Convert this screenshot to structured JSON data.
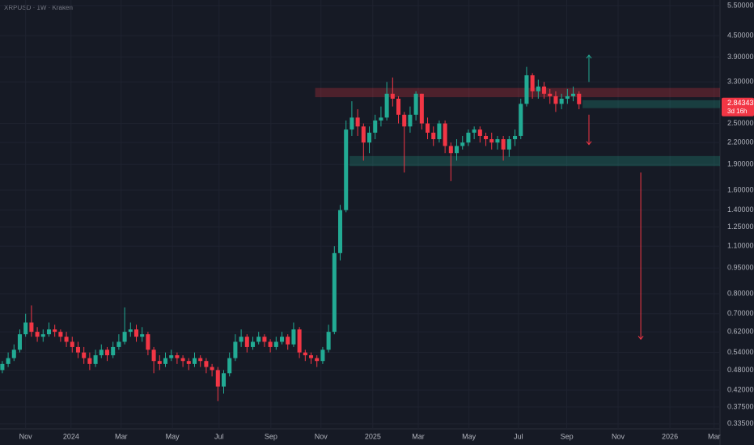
{
  "chart_data": {
    "type": "candlestick",
    "title": "XRPUSD · 1W · Kraken",
    "log_scale": true,
    "grid": true,
    "up_color": "#22ab94",
    "down_color": "#f23645",
    "open": [
      0.48,
      0.5,
      0.52,
      0.55,
      0.61,
      0.66,
      0.62,
      0.6,
      0.61,
      0.63,
      0.62,
      0.6,
      0.58,
      0.56,
      0.54,
      0.52,
      0.5,
      0.53,
      0.55,
      0.53,
      0.56,
      0.58,
      0.62,
      0.63,
      0.6,
      0.61,
      0.55,
      0.51,
      0.5,
      0.52,
      0.53,
      0.52,
      0.51,
      0.5,
      0.52,
      0.51,
      0.49,
      0.48,
      0.43,
      0.47,
      0.52,
      0.58,
      0.6,
      0.56,
      0.58,
      0.6,
      0.58,
      0.56,
      0.58,
      0.6,
      0.57,
      0.63,
      0.54,
      0.53,
      0.52,
      0.51,
      0.55,
      0.62,
      1.05,
      1.4,
      2.4,
      2.6,
      2.45,
      2.2,
      2.35,
      2.55,
      2.6,
      3.05,
      2.95,
      2.65,
      2.45,
      2.65,
      3.05,
      2.5,
      2.35,
      2.25,
      2.5,
      2.15,
      2.05,
      2.15,
      2.2,
      2.35,
      2.4,
      2.3,
      2.25,
      2.2,
      2.25,
      2.1,
      2.25,
      2.3,
      2.85,
      3.45,
      3.1,
      3.2,
      3.05,
      3.0,
      2.85,
      2.95,
      3.0,
      3.05
    ],
    "high": [
      0.51,
      0.54,
      0.57,
      0.63,
      0.7,
      0.74,
      0.64,
      0.63,
      0.66,
      0.65,
      0.63,
      0.62,
      0.6,
      0.58,
      0.56,
      0.54,
      0.55,
      0.57,
      0.56,
      0.58,
      0.61,
      0.73,
      0.66,
      0.65,
      0.64,
      0.62,
      0.56,
      0.53,
      0.54,
      0.55,
      0.54,
      0.53,
      0.52,
      0.54,
      0.53,
      0.52,
      0.5,
      0.49,
      0.48,
      0.54,
      0.61,
      0.63,
      0.61,
      0.6,
      0.62,
      0.61,
      0.59,
      0.6,
      0.62,
      0.61,
      0.66,
      0.64,
      0.55,
      0.54,
      0.53,
      0.56,
      0.65,
      1.1,
      1.45,
      2.55,
      2.9,
      2.75,
      2.5,
      2.45,
      2.65,
      2.8,
      3.3,
      3.4,
      3.0,
      2.7,
      2.8,
      3.1,
      3.05,
      2.6,
      2.45,
      2.55,
      2.55,
      2.2,
      2.25,
      2.3,
      2.4,
      2.45,
      2.45,
      2.35,
      2.35,
      2.3,
      2.3,
      2.3,
      2.4,
      2.95,
      3.65,
      3.5,
      3.35,
      3.3,
      3.15,
      3.1,
      3.05,
      3.15,
      3.2,
      3.1
    ],
    "low": [
      0.47,
      0.49,
      0.51,
      0.54,
      0.6,
      0.6,
      0.58,
      0.58,
      0.6,
      0.6,
      0.58,
      0.56,
      0.54,
      0.52,
      0.5,
      0.48,
      0.49,
      0.52,
      0.51,
      0.52,
      0.55,
      0.57,
      0.6,
      0.58,
      0.58,
      0.53,
      0.47,
      0.48,
      0.49,
      0.51,
      0.5,
      0.49,
      0.48,
      0.49,
      0.49,
      0.47,
      0.46,
      0.39,
      0.41,
      0.46,
      0.51,
      0.56,
      0.54,
      0.55,
      0.57,
      0.56,
      0.54,
      0.55,
      0.57,
      0.55,
      0.56,
      0.52,
      0.51,
      0.5,
      0.49,
      0.5,
      0.54,
      0.61,
      1.0,
      1.38,
      2.3,
      2.3,
      1.95,
      2.05,
      2.25,
      2.45,
      2.55,
      2.8,
      2.5,
      1.8,
      2.35,
      2.55,
      2.4,
      2.25,
      2.15,
      2.2,
      2.05,
      1.7,
      1.95,
      2.1,
      2.15,
      2.25,
      2.2,
      2.15,
      2.1,
      2.1,
      1.95,
      2.0,
      2.15,
      2.25,
      2.8,
      2.95,
      2.95,
      2.95,
      2.85,
      2.7,
      2.75,
      2.85,
      2.9,
      2.75
    ],
    "close": [
      0.5,
      0.52,
      0.55,
      0.61,
      0.66,
      0.62,
      0.6,
      0.61,
      0.63,
      0.62,
      0.6,
      0.58,
      0.56,
      0.54,
      0.52,
      0.5,
      0.53,
      0.55,
      0.53,
      0.56,
      0.58,
      0.62,
      0.63,
      0.6,
      0.61,
      0.55,
      0.51,
      0.5,
      0.52,
      0.53,
      0.52,
      0.51,
      0.5,
      0.52,
      0.51,
      0.49,
      0.48,
      0.43,
      0.47,
      0.52,
      0.58,
      0.6,
      0.56,
      0.58,
      0.6,
      0.58,
      0.56,
      0.58,
      0.6,
      0.57,
      0.63,
      0.54,
      0.53,
      0.52,
      0.51,
      0.55,
      0.62,
      1.05,
      1.4,
      2.4,
      2.6,
      2.45,
      2.2,
      2.35,
      2.55,
      2.6,
      3.05,
      2.95,
      2.65,
      2.45,
      2.65,
      3.05,
      2.5,
      2.35,
      2.25,
      2.5,
      2.15,
      2.05,
      2.15,
      2.2,
      2.35,
      2.4,
      2.3,
      2.25,
      2.2,
      2.25,
      2.1,
      2.25,
      2.3,
      2.85,
      3.45,
      3.1,
      3.2,
      3.05,
      3.0,
      2.85,
      2.95,
      3.0,
      3.05,
      2.84343
    ],
    "last_price_label": "2.84343",
    "countdown": "3d 16h",
    "xlim": [
      -0.4,
      123.2
    ],
    "xticks": [
      {
        "value": 4.0,
        "label": "Nov"
      },
      {
        "value": 11.8,
        "label": "2024"
      },
      {
        "value": 20.4,
        "label": "Mar"
      },
      {
        "value": 29.2,
        "label": "May"
      },
      {
        "value": 37.2,
        "label": "Jul"
      },
      {
        "value": 46.1,
        "label": "Sep"
      },
      {
        "value": 54.7,
        "label": "Nov"
      },
      {
        "value": 63.6,
        "label": "2025"
      },
      {
        "value": 71.4,
        "label": "Mar"
      },
      {
        "value": 80.1,
        "label": "May"
      },
      {
        "value": 88.6,
        "label": "Jul"
      },
      {
        "value": 96.9,
        "label": "Sep"
      },
      {
        "value": 105.7,
        "label": "Nov"
      },
      {
        "value": 114.6,
        "label": "2026"
      },
      {
        "value": 122.2,
        "label": "Mar"
      }
    ],
    "ylim": [
      0.324,
      5.71
    ],
    "yticks": [
      {
        "value": 5.5,
        "label": "5.50000"
      },
      {
        "value": 4.5,
        "label": "4.50000"
      },
      {
        "value": 3.9,
        "label": "3.90000"
      },
      {
        "value": 3.3,
        "label": "3.30000"
      },
      {
        "value": 2.5,
        "label": "2.50000"
      },
      {
        "value": 2.2,
        "label": "2.20000"
      },
      {
        "value": 1.9,
        "label": "1.90000"
      },
      {
        "value": 1.6,
        "label": "1.60000"
      },
      {
        "value": 1.4,
        "label": "1.40000"
      },
      {
        "value": 1.25,
        "label": "1.25000"
      },
      {
        "value": 1.1,
        "label": "1.10000"
      },
      {
        "value": 0.95,
        "label": "0.95000"
      },
      {
        "value": 0.8,
        "label": "0.80000"
      },
      {
        "value": 0.7,
        "label": "0.70000"
      },
      {
        "value": 0.62,
        "label": "0.62000"
      },
      {
        "value": 0.54,
        "label": "0.54000"
      },
      {
        "value": 0.48,
        "label": "0.48000"
      },
      {
        "value": 0.42,
        "label": "0.42000"
      },
      {
        "value": 0.375,
        "label": "0.37500"
      },
      {
        "value": 0.335,
        "label": "0.33500"
      }
    ],
    "zones": [
      {
        "start": 53.7,
        "low": 2.98,
        "high": 3.17,
        "color": "#f23645"
      },
      {
        "start": 99.6,
        "low": 2.77,
        "high": 2.92,
        "color": "#22ab94"
      },
      {
        "start": 59.6,
        "low": 1.88,
        "high": 2.01,
        "color": "#22ab94"
      }
    ],
    "arrows": [
      {
        "x": 100.7,
        "from": 3.3,
        "to": 3.95,
        "color": "#22ab94"
      },
      {
        "x": 100.7,
        "from": 2.65,
        "to": 2.17,
        "color": "#f23645"
      },
      {
        "x": 109.6,
        "from": 1.8,
        "to": 0.59,
        "color": "#f23645"
      }
    ]
  }
}
